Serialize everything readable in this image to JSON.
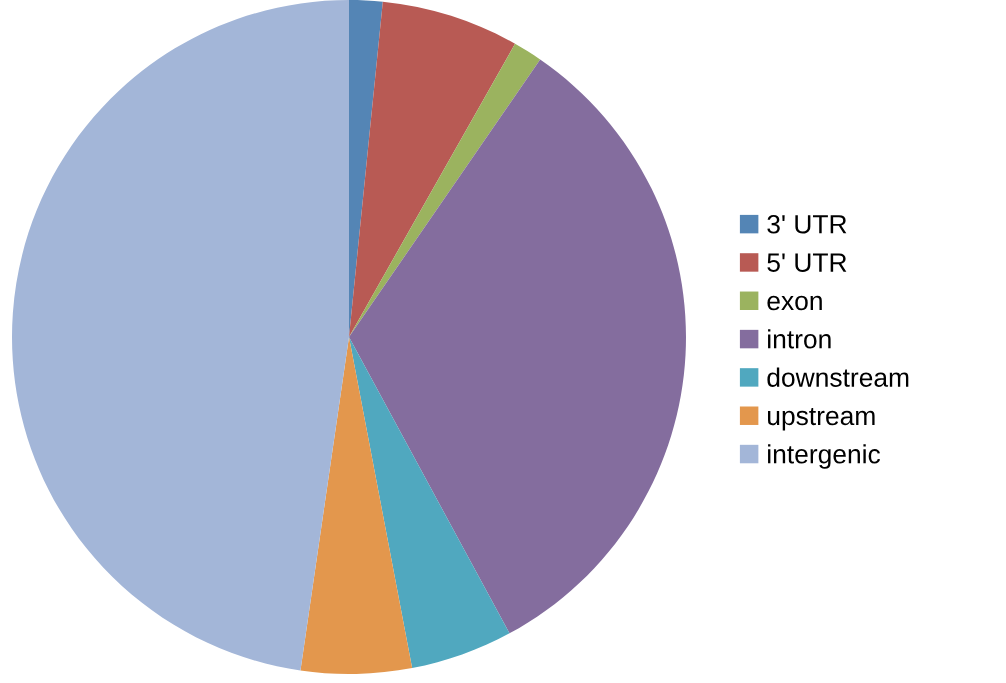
{
  "chart_data": {
    "type": "pie",
    "categories": [
      "3' UTR",
      "5' UTR",
      "exon",
      "intron",
      "downstream",
      "upstream",
      "intergenic"
    ],
    "values": [
      1.6,
      6.6,
      1.4,
      32.5,
      4.9,
      5.3,
      47.7
    ],
    "colors": [
      "#5485b5",
      "#b85a54",
      "#9bb35f",
      "#846d9e",
      "#50a8bf",
      "#e3974d",
      "#a3b6d8"
    ],
    "legend": "right"
  }
}
